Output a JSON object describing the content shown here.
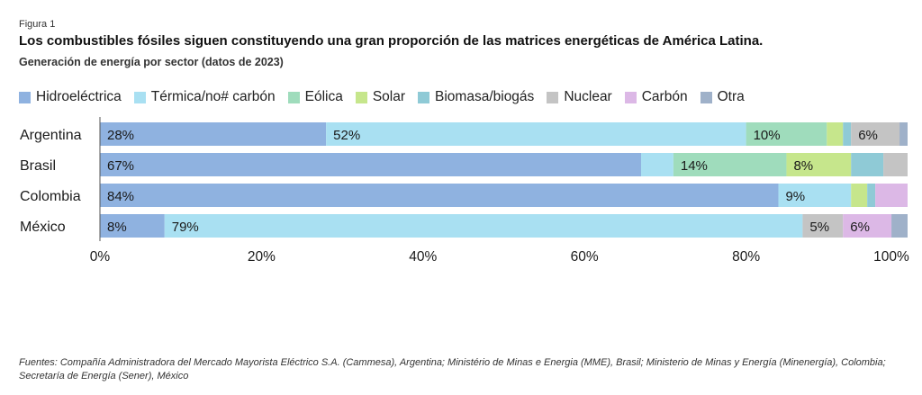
{
  "figure_label": "Figura 1",
  "title": "Los combustibles fósiles siguen constituyendo una gran proporción de las matrices energéticas de América Latina.",
  "subtitle": "Generación de energía por sector (datos de 2023)",
  "sources": "Fuentes: Compañía Administradora del Mercado Mayorista Eléctrico S.A. (Cammesa), Argentina; Ministério de Minas e Energia (MME), Brasil; Ministerio de Minas y Energía (Minenergía), Colombia; Secretaría de Energía (Sener), México",
  "colors": {
    "Hidroeléctrica": "#8fb2e0",
    "Térmica/no# carbón": "#a9e0f2",
    "Eólica": "#9fdcbc",
    "Solar": "#c6e68c",
    "Biomasa/biogás": "#8fcad6",
    "Nuclear": "#c4c4c4",
    "Carbón": "#dcb8e6",
    "Otra": "#9fb1c9"
  },
  "chart_data": {
    "type": "bar",
    "orientation": "horizontal",
    "stacked": true,
    "categories": [
      "Argentina",
      "Brasil",
      "Colombia",
      "México"
    ],
    "series": [
      {
        "name": "Hidroeléctrica",
        "values": [
          28,
          67,
          84,
          8
        ]
      },
      {
        "name": "Térmica/no# carbón",
        "values": [
          52,
          4,
          9,
          79
        ]
      },
      {
        "name": "Eólica",
        "values": [
          10,
          14,
          0,
          0
        ]
      },
      {
        "name": "Solar",
        "values": [
          2,
          8,
          2,
          0
        ]
      },
      {
        "name": "Biomasa/biogás",
        "values": [
          1,
          4,
          1,
          0
        ]
      },
      {
        "name": "Nuclear",
        "values": [
          6,
          3,
          0,
          5
        ]
      },
      {
        "name": "Carbón",
        "values": [
          0,
          0,
          4,
          6
        ]
      },
      {
        "name": "Otra",
        "values": [
          1,
          0,
          0,
          2
        ]
      }
    ],
    "data_labels": [
      {
        "category": "Argentina",
        "series": "Hidroeléctrica",
        "text": "28%"
      },
      {
        "category": "Argentina",
        "series": "Térmica/no# carbón",
        "text": "52%"
      },
      {
        "category": "Argentina",
        "series": "Eólica",
        "text": "10%"
      },
      {
        "category": "Argentina",
        "series": "Nuclear",
        "text": "6%"
      },
      {
        "category": "Brasil",
        "series": "Hidroeléctrica",
        "text": "67%"
      },
      {
        "category": "Brasil",
        "series": "Eólica",
        "text": "14%"
      },
      {
        "category": "Brasil",
        "series": "Solar",
        "text": "8%"
      },
      {
        "category": "Colombia",
        "series": "Hidroeléctrica",
        "text": "84%"
      },
      {
        "category": "Colombia",
        "series": "Térmica/no# carbón",
        "text": "9%"
      },
      {
        "category": "México",
        "series": "Hidroeléctrica",
        "text": "8%"
      },
      {
        "category": "México",
        "series": "Térmica/no# carbón",
        "text": "79%"
      },
      {
        "category": "México",
        "series": "Nuclear",
        "text": "5%"
      },
      {
        "category": "México",
        "series": "Carbón",
        "text": "6%"
      }
    ],
    "x_ticks": [
      "0%",
      "20%",
      "40%",
      "60%",
      "80%",
      "100%"
    ],
    "xlim": [
      0,
      100
    ],
    "legend_position": "top",
    "grid": false
  }
}
